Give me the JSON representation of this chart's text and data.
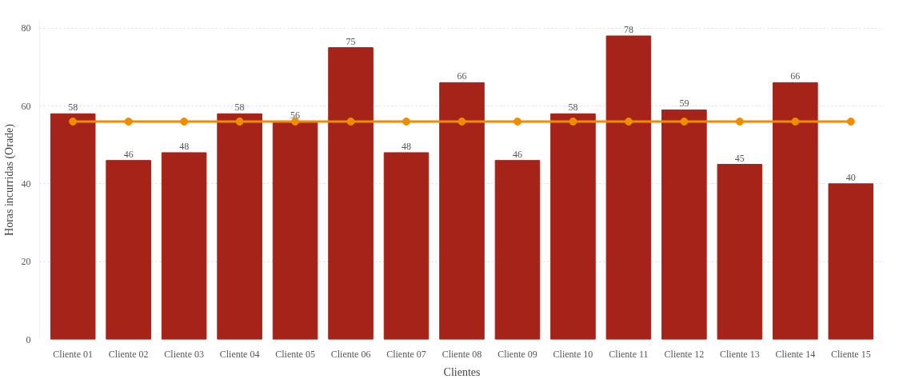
{
  "chart_data": {
    "type": "bar",
    "xlabel": "Clientes",
    "ylabel": "Horas incurridas (Orade)",
    "categories": [
      "Cliente 01",
      "Cliente 02",
      "Cliente 03",
      "Cliente 04",
      "Cliente 05",
      "Cliente 06",
      "Cliente 07",
      "Cliente 08",
      "Cliente 09",
      "Cliente 10",
      "Cliente 11",
      "Cliente 12",
      "Cliente 13",
      "Cliente 14",
      "Cliente 15"
    ],
    "series": [
      {
        "color": "#a52318",
        "data_labels": true,
        "values": [
          58,
          46,
          48,
          58,
          56,
          75,
          48,
          66,
          46,
          58,
          78,
          59,
          45,
          66,
          40
        ]
      },
      {
        "type": "line",
        "color": "#f08c00",
        "marker": "circle",
        "line_style": "solid",
        "values": [
          56,
          56,
          56,
          56,
          56,
          56,
          56,
          56,
          56,
          56,
          56,
          56,
          56,
          56,
          56
        ]
      }
    ],
    "ylim": [
      0,
      82
    ],
    "yticks": [
      0,
      20,
      40,
      60,
      80
    ],
    "grid": "y"
  }
}
